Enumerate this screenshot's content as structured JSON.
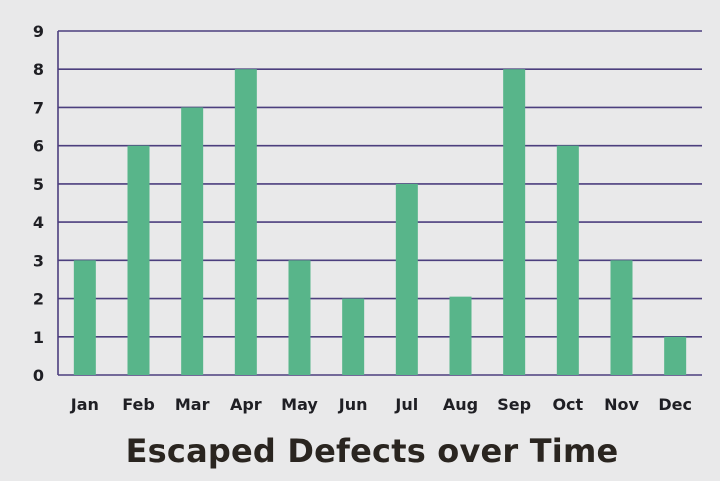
{
  "chart_data": {
    "type": "bar",
    "title": "Escaped Defects over Time",
    "xlabel": "",
    "ylabel": "",
    "categories": [
      "Jan",
      "Feb",
      "Mar",
      "Apr",
      "May",
      "Jun",
      "Jul",
      "Aug",
      "Sep",
      "Oct",
      "Nov",
      "Dec"
    ],
    "values": [
      3,
      6,
      7,
      8,
      3,
      2,
      5,
      2.05,
      8,
      6,
      3,
      1
    ],
    "ylim": [
      0,
      9
    ],
    "yticks": [
      0,
      1,
      2,
      3,
      4,
      5,
      6,
      7,
      8,
      9
    ],
    "grid": true,
    "legend": "none",
    "colors": {
      "bar": "#58b58a",
      "grid": "#4c3f7e",
      "background": "#e9e9ea",
      "text": "#1f1f24"
    }
  }
}
